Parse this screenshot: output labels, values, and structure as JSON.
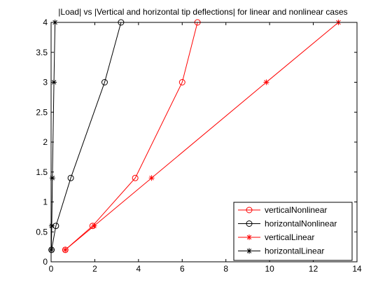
{
  "chart_data": {
    "type": "line",
    "title": "|Load| vs |Vertical and horizontal tip deflections| for linear and nonlinear cases",
    "xlabel": "",
    "ylabel": "",
    "xlim": [
      0,
      14
    ],
    "ylim": [
      0,
      4
    ],
    "x_ticks": [
      0,
      2,
      4,
      6,
      8,
      10,
      12,
      14
    ],
    "y_ticks": [
      0,
      0.5,
      1,
      1.5,
      2,
      2.5,
      3,
      3.5,
      4
    ],
    "x_tick_labels": [
      "0",
      "2",
      "4",
      "6",
      "8",
      "10",
      "12",
      "14"
    ],
    "y_tick_labels": [
      "0",
      "0.5",
      "1",
      "1.5",
      "2",
      "2.5",
      "3",
      "3.5",
      "4"
    ],
    "grid": false,
    "legend_position": "bottom-right",
    "series": [
      {
        "name": "verticalNonlinear",
        "color": "#ff0000",
        "marker": "circle",
        "x": [
          0.65,
          1.9,
          3.85,
          6.0,
          6.7
        ],
        "y": [
          0.2,
          0.6,
          1.4,
          3.0,
          4.0
        ]
      },
      {
        "name": "horizontalNonlinear",
        "color": "#000000",
        "marker": "circle",
        "x": [
          0.02,
          0.22,
          0.9,
          2.45,
          3.2
        ],
        "y": [
          0.2,
          0.6,
          1.4,
          3.0,
          4.0
        ]
      },
      {
        "name": "verticalLinear",
        "color": "#ff0000",
        "marker": "star",
        "x": [
          0.65,
          1.97,
          4.6,
          9.85,
          13.15
        ],
        "y": [
          0.2,
          0.6,
          1.4,
          3.0,
          4.0
        ]
      },
      {
        "name": "horizontalLinear",
        "color": "#000000",
        "marker": "star",
        "x": [
          0.01,
          0.03,
          0.06,
          0.13,
          0.18
        ],
        "y": [
          0.2,
          0.6,
          1.4,
          3.0,
          4.0
        ]
      }
    ]
  }
}
